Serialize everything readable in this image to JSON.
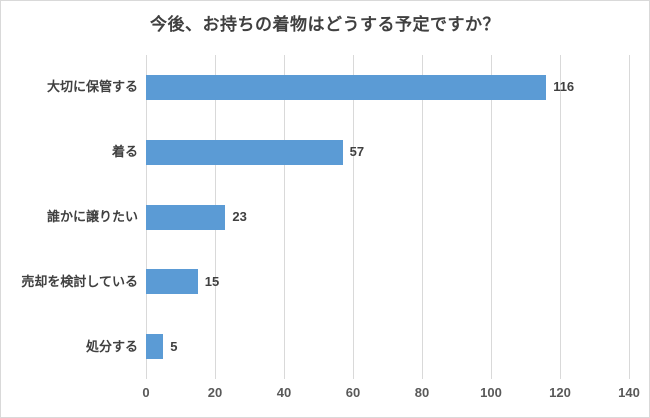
{
  "chart_data": {
    "type": "bar",
    "orientation": "horizontal",
    "title": "今後、お持ちの着物はどうする予定ですか？",
    "categories": [
      "大切に保管する",
      "着る",
      "誰かに譲りたい",
      "売却を検討している",
      "処分する"
    ],
    "values": [
      116,
      57,
      23,
      15,
      5
    ],
    "xlabel": "",
    "ylabel": "",
    "xlim": [
      0,
      140
    ],
    "x_ticks": [
      0,
      20,
      40,
      60,
      80,
      100,
      120,
      140
    ],
    "grid": "vertical-gridlines-on",
    "legend": "none",
    "data_labels": [
      116,
      57,
      23,
      15,
      5
    ],
    "colors": {
      "bar": "#5b9bd5",
      "gridline": "#d9d9d9",
      "frame_border": "#d9d9d9",
      "title_text": "#404040",
      "label_text": "#404040",
      "tick_text": "#595959",
      "background": "#ffffff"
    }
  }
}
